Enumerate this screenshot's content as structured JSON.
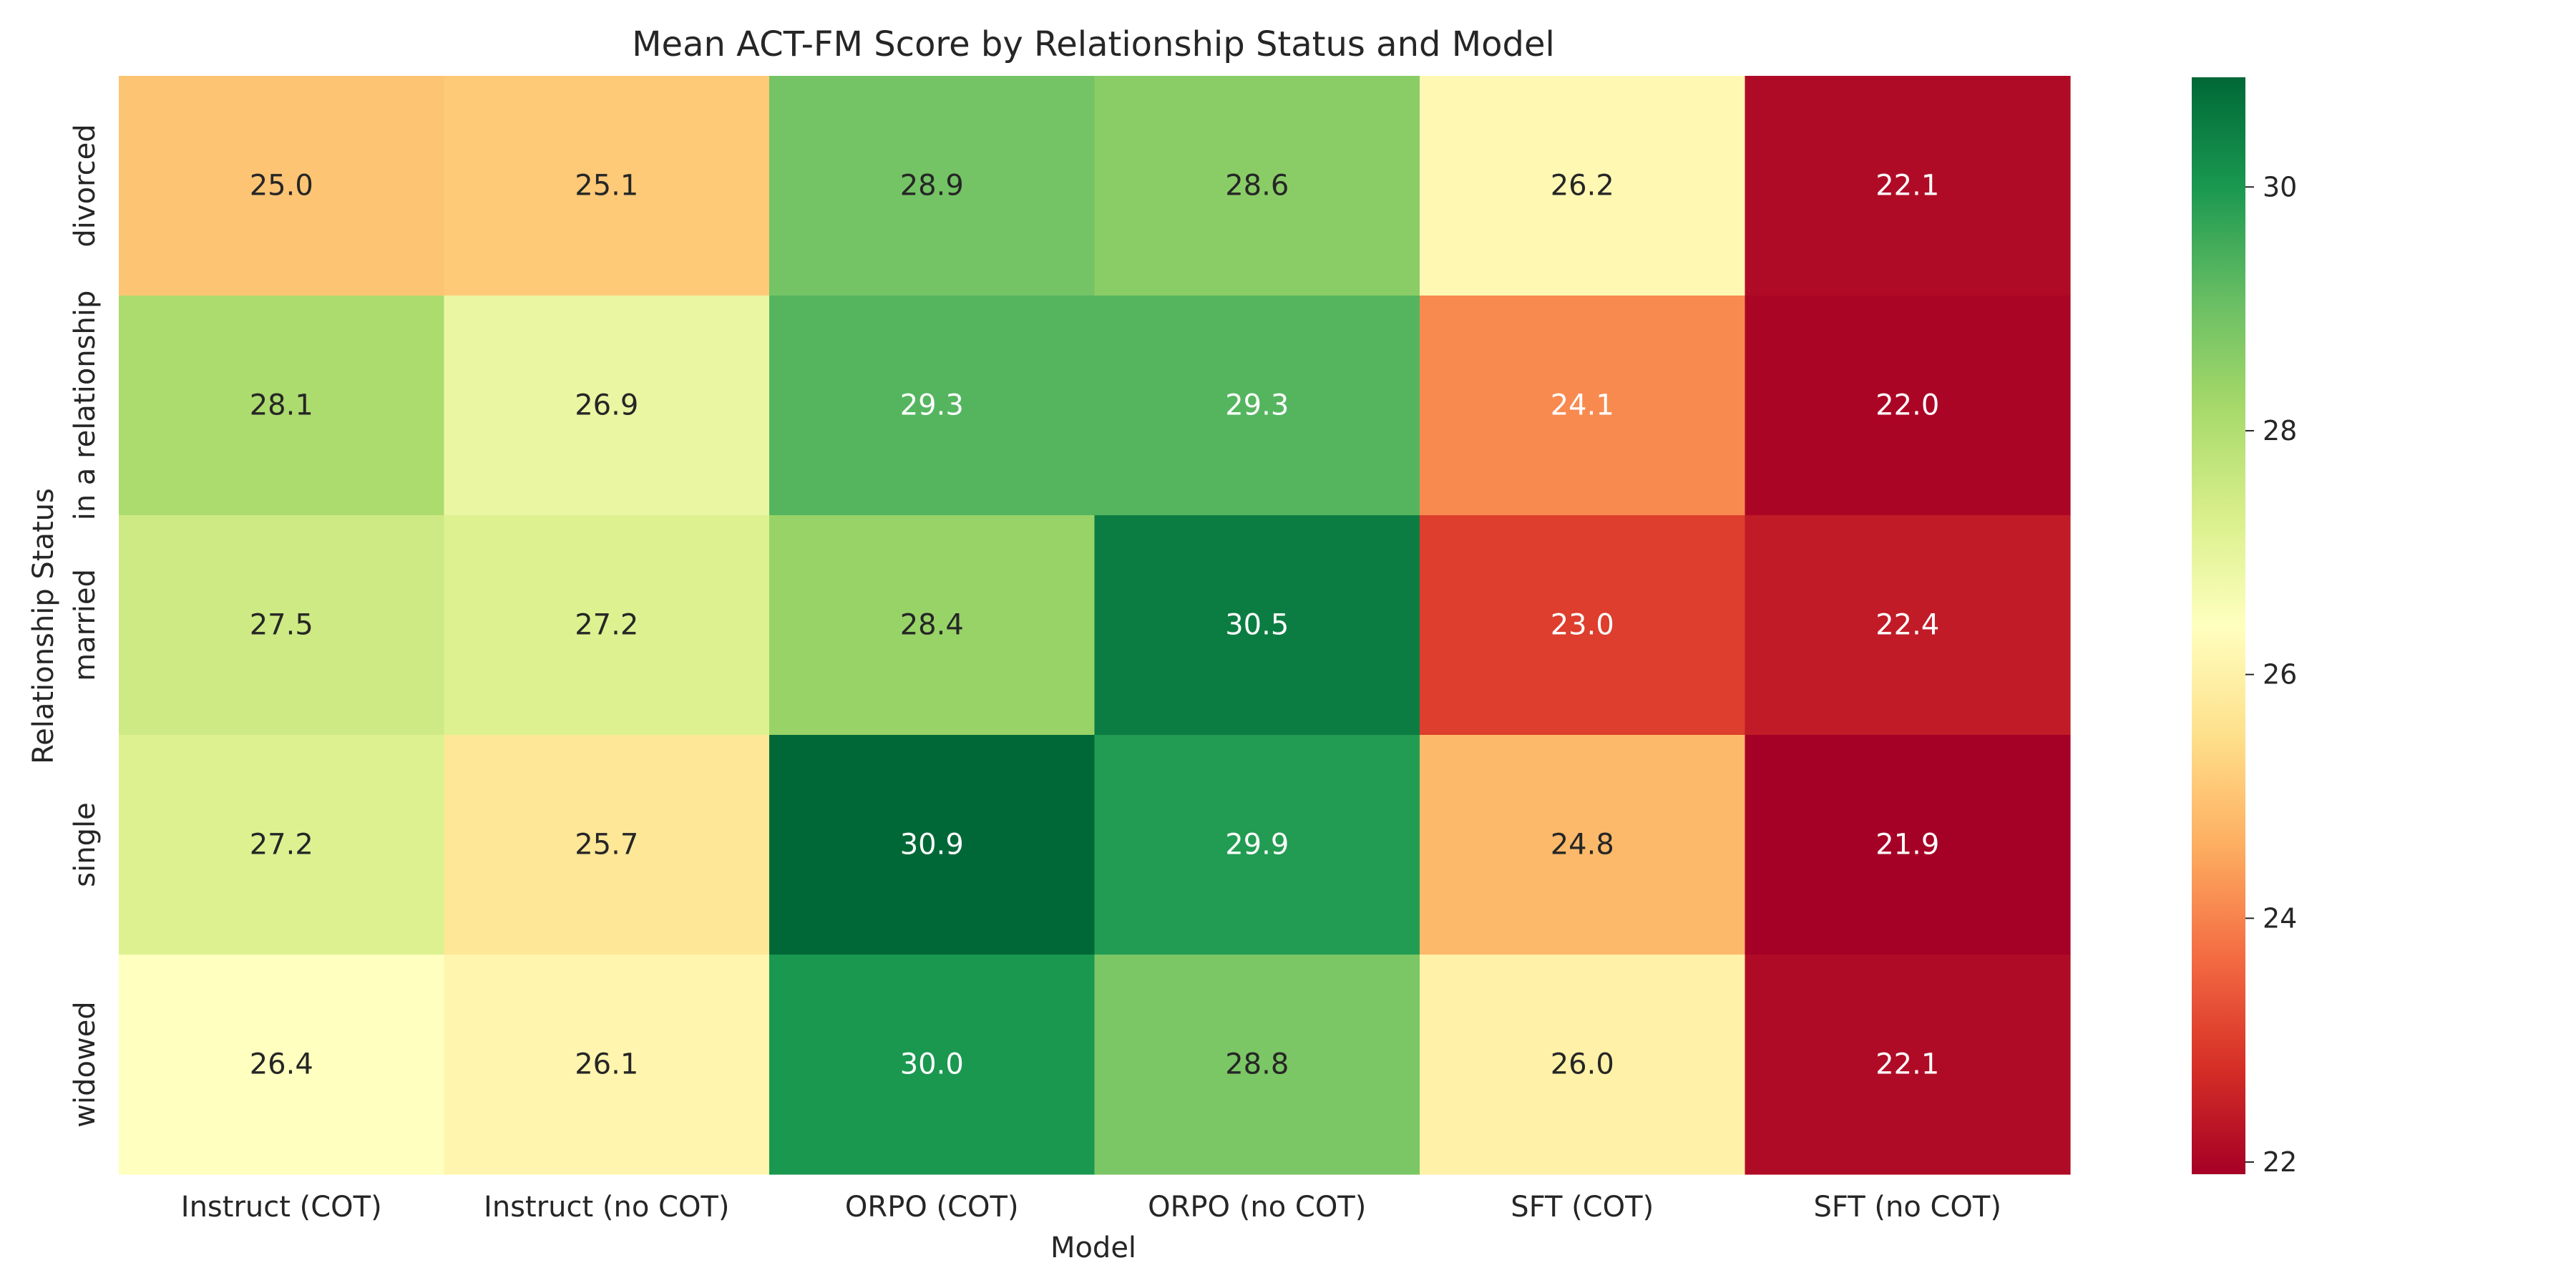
{
  "chart_data": {
    "type": "heatmap",
    "title": "Mean ACT-FM Score by Relationship Status and Model",
    "xlabel": "Model",
    "ylabel": "Relationship Status",
    "x_categories": [
      "Instruct (COT)",
      "Instruct (no COT)",
      "ORPO (COT)",
      "ORPO (no COT)",
      "SFT (COT)",
      "SFT (no COT)"
    ],
    "y_categories": [
      "divorced",
      "in a relationship",
      "married",
      "single",
      "widowed"
    ],
    "values": [
      [
        25.0,
        25.1,
        28.9,
        28.6,
        26.2,
        22.1
      ],
      [
        28.1,
        26.9,
        29.3,
        29.3,
        24.1,
        22.0
      ],
      [
        27.5,
        27.2,
        28.4,
        30.5,
        23.0,
        22.4
      ],
      [
        27.2,
        25.7,
        30.9,
        29.9,
        24.8,
        21.9
      ],
      [
        26.4,
        26.1,
        30.0,
        28.8,
        26.0,
        22.1
      ]
    ],
    "annotation_format": "0.1f",
    "colormap": "RdYlGn",
    "color_range": [
      21.9,
      30.9
    ],
    "colorbar": {
      "ticks": [
        22,
        24,
        26,
        28,
        30
      ],
      "placement": "right"
    },
    "colors": {
      "low": "#a50026",
      "mid": "#ffffbf",
      "high": "#006837",
      "text_dark": "#262626",
      "text_light": "#ffffff"
    },
    "grid": false
  }
}
